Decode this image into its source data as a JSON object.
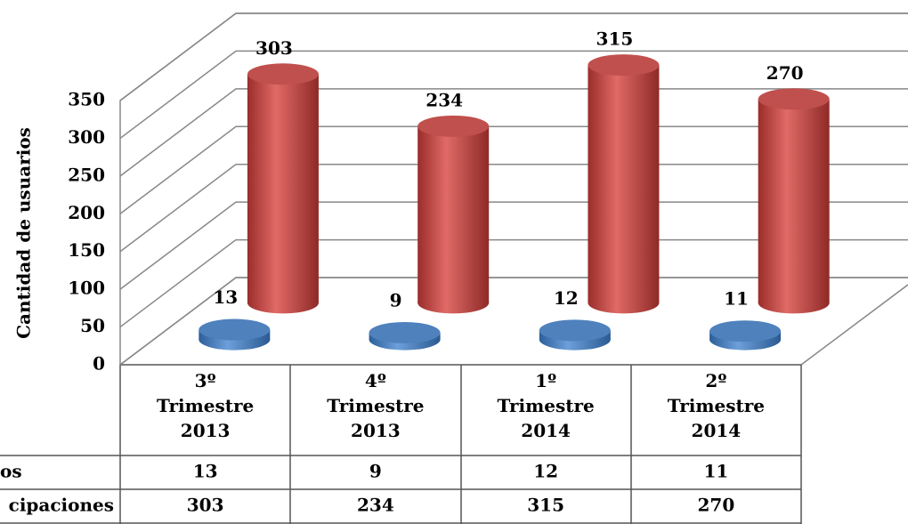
{
  "chart_data": {
    "type": "cylinder3d",
    "y_axis_label": "Cantidad de usuarios",
    "categories": [
      "3º Trimestre 2013",
      "4º Trimestre 2013",
      "1º Trimestre 2014",
      "2º Trimestre 2014"
    ],
    "series": [
      {
        "name": "os",
        "color": "#4f81bd",
        "values": [
          13,
          9,
          12,
          11
        ]
      },
      {
        "name": "cipaciones",
        "color": "#c0504d",
        "values": [
          303,
          234,
          315,
          270
        ]
      }
    ],
    "ylim": [
      0,
      350
    ],
    "yticks": [
      0,
      50,
      100,
      150,
      200,
      250,
      300,
      350
    ],
    "grid": true
  }
}
